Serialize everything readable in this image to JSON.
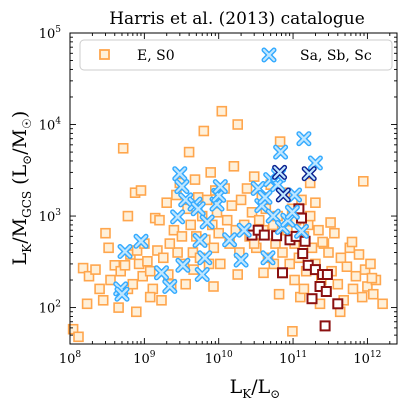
{
  "chart_data": {
    "type": "scatter",
    "title": "Harris et al. (2013) catalogue",
    "xlabel": "L",
    "xlabel_sub": "K",
    "xlabel_unit": "L",
    "xlabel_unit_symbol": "⊙",
    "ylabel": "L",
    "ylabel_sub_1": "K",
    "ylabel_sep": "/M",
    "ylabel_sub_2": "GCS",
    "ylabel_unit_open": " (L",
    "ylabel_unit_symbol": "⊙",
    "ylabel_unit_sep": "/M",
    "ylabel_unit_close": ")",
    "x_scale": "log",
    "y_scale": "log",
    "xlim": [
      100000000,
      2500000000000
    ],
    "ylim": [
      40,
      100000
    ],
    "x_ticks": [
      {
        "value": 100000000,
        "base": "10",
        "exp": "8"
      },
      {
        "value": 1000000000,
        "base": "10",
        "exp": "9"
      },
      {
        "value": 10000000000,
        "base": "10",
        "exp": "10"
      },
      {
        "value": 100000000000,
        "base": "10",
        "exp": "11"
      },
      {
        "value": 1000000000000,
        "base": "10",
        "exp": "12"
      }
    ],
    "y_ticks": [
      {
        "value": 100,
        "base": "10",
        "exp": "2"
      },
      {
        "value": 1000,
        "base": "10",
        "exp": "3"
      },
      {
        "value": 10000,
        "base": "10",
        "exp": "4"
      },
      {
        "value": 100000,
        "base": "10",
        "exp": "5"
      }
    ],
    "grid": false,
    "legend_position": "top",
    "colors": {
      "es0_edge": "#ffa64d",
      "es0_face": "#fff0d9",
      "spiral_edge": "#33aaff",
      "spiral_face": "#bfe6ff",
      "es0_dark_edge": "#8b1010",
      "spiral_dark_edge": "#0a1f8f"
    },
    "series": [
      {
        "name": "E, S0",
        "marker": "square",
        "points": [
          [
            110000000.0,
            58
          ],
          [
            130000000.0,
            48
          ],
          [
            150000000.0,
            270
          ],
          [
            180000000.0,
            220
          ],
          [
            220000000.0,
            260
          ],
          [
            170000000.0,
            110
          ],
          [
            250000000.0,
            160
          ],
          [
            280000000.0,
            120
          ],
          [
            330000000.0,
            450
          ],
          [
            350000000.0,
            200
          ],
          [
            400000000.0,
            290
          ],
          [
            450000000.0,
            100
          ],
          [
            480000000.0,
            250
          ],
          [
            520000000.0,
            5500
          ],
          [
            550000000.0,
            290
          ],
          [
            600000000.0,
            160
          ],
          [
            650000000.0,
            380
          ],
          [
            700000000.0,
            180
          ],
          [
            750000000.0,
            1800
          ],
          [
            780000000.0,
            90
          ],
          [
            800000000.0,
            420
          ],
          [
            850000000.0,
            300
          ],
          [
            900000000.0,
            1900
          ],
          [
            950000000.0,
            220
          ],
          [
            1000000000.0,
            500
          ],
          [
            1100000000.0,
            320
          ],
          [
            1200000000.0,
            250
          ],
          [
            1300000000.0,
            160
          ],
          [
            1400000000.0,
            950
          ],
          [
            1500000000.0,
            420
          ],
          [
            1600000000.0,
            900
          ],
          [
            1700000000.0,
            120
          ],
          [
            1800000000.0,
            350
          ],
          [
            2000000000.0,
            1400
          ],
          [
            2100000000.0,
            230
          ],
          [
            2300000000.0,
            180
          ],
          [
            2500000000.0,
            700
          ],
          [
            2700000000.0,
            1700
          ],
          [
            2800000000.0,
            400
          ],
          [
            3000000000.0,
            2300
          ],
          [
            3200000000.0,
            600
          ],
          [
            3400000000.0,
            300
          ],
          [
            3600000000.0,
            180
          ],
          [
            3800000000.0,
            1200
          ],
          [
            4000000000.0,
            5000
          ],
          [
            4200000000.0,
            800
          ],
          [
            4500000000.0,
            400
          ],
          [
            4800000000.0,
            2500
          ],
          [
            5000000000.0,
            600
          ],
          [
            5300000000.0,
            1600
          ],
          [
            5600000000.0,
            350
          ],
          [
            6000000000.0,
            1000
          ],
          [
            6300000000.0,
            8500
          ],
          [
            6600000000.0,
            550
          ],
          [
            7000000000.0,
            1500
          ],
          [
            7400000000.0,
            300
          ],
          [
            7800000000.0,
            3000
          ],
          [
            8200000000.0,
            800
          ],
          [
            8600000000.0,
            450
          ],
          [
            9000000000.0,
            1900
          ],
          [
            9500000000.0,
            1100
          ],
          [
            10000000000.0,
            650
          ],
          [
            10500000000.0,
            300
          ],
          [
            11000000000.0,
            14000
          ],
          [
            12000000000.0,
            2000
          ],
          [
            13000000000.0,
            900
          ],
          [
            14000000000.0,
            500
          ],
          [
            15000000000.0,
            1300
          ],
          [
            16000000000.0,
            3500
          ],
          [
            17000000000.0,
            700
          ],
          [
            18000000000.0,
            10000
          ],
          [
            19000000000.0,
            400
          ],
          [
            20000000000.0,
            1500
          ],
          [
            22000000000.0,
            800
          ],
          [
            24000000000.0,
            2000
          ],
          [
            26000000000.0,
            600
          ],
          [
            28000000000.0,
            1100
          ],
          [
            30000000000.0,
            2700
          ],
          [
            32000000000.0,
            450
          ],
          [
            35000000000.0,
            900
          ],
          [
            38000000000.0,
            1600
          ],
          [
            40000000000.0,
            700
          ],
          [
            43000000000.0,
            1200
          ],
          [
            46000000000.0,
            350
          ],
          [
            50000000000.0,
            2200
          ],
          [
            54000000000.0,
            800
          ],
          [
            58000000000.0,
            500
          ],
          [
            62000000000.0,
            1000
          ],
          [
            67000000000.0,
            6500
          ],
          [
            72000000000.0,
            400
          ],
          [
            78000000000.0,
            1800
          ],
          [
            84000000000.0,
            700
          ],
          [
            90000000000.0,
            300
          ],
          [
            97000000000.0,
            1200
          ],
          [
            105000000000.0,
            500
          ],
          [
            110000000000.0,
            900
          ],
          [
            120000000000.0,
            350
          ],
          [
            130000000000.0,
            1500
          ],
          [
            140000000000.0,
            600
          ],
          [
            150000000000.0,
            250
          ],
          [
            160000000000.0,
            800
          ],
          [
            170000000000.0,
            1000
          ],
          [
            180000000000.0,
            450
          ],
          [
            200000000000.0,
            300
          ],
          [
            220000000000.0,
            700
          ],
          [
            240000000000.0,
            200
          ],
          [
            260000000000.0,
            500
          ],
          [
            280000000000.0,
            150
          ],
          [
            300000000000.0,
            400
          ],
          [
            330000000000.0,
            250
          ],
          [
            360000000000.0,
            650
          ],
          [
            400000000000.0,
            180
          ],
          [
            440000000000.0,
            350
          ],
          [
            480000000000.0,
            120
          ],
          [
            530000000000.0,
            280
          ],
          [
            580000000000.0,
            450
          ],
          [
            640000000000.0,
            160
          ],
          [
            700000000000.0,
            220
          ],
          [
            770000000000.0,
            380
          ],
          [
            850000000000.0,
            130
          ],
          [
            930000000000.0,
            260
          ],
          [
            1000000000000.0,
            170
          ],
          [
            1100000000000.0,
            300
          ],
          [
            1200000000000.0,
            140
          ],
          [
            1300000000000.0,
            200
          ],
          [
            105000000000.0,
            200
          ],
          [
            98000000000.0,
            55
          ],
          [
            125000000000.0,
            130
          ],
          [
            140000000000.0,
            160
          ],
          [
            230000000000.0,
            110
          ],
          [
            200000000000.0,
            1400
          ],
          [
            250000000000.0,
            520
          ],
          [
            170000000000.0,
            2300
          ],
          [
            18000000000.0,
            230
          ],
          [
            8500000000.0,
            170
          ],
          [
            4600000000.0,
            260
          ],
          [
            2200000000.0,
            500
          ],
          [
            600000000.0,
            1000
          ],
          [
            300000000.0,
            650
          ],
          [
            1200000000.0,
            130
          ],
          [
            30000000000.0,
            500
          ],
          [
            40000000000.0,
            240
          ],
          [
            65000000000.0,
            140
          ],
          [
            55000000000.0,
            300
          ],
          [
            880000000000.0,
            2400
          ],
          [
            1150000000000.0,
            210
          ],
          [
            1600000000000.0,
            110
          ],
          [
            620000000000.0,
            520
          ],
          [
            320000000000.0,
            850
          ],
          [
            430000000000.0,
            90
          ]
        ]
      },
      {
        "name": "E, S0 (highlighted)",
        "marker": "square",
        "highlight": true,
        "points": [
          [
            28000000000.0,
            620
          ],
          [
            34000000000.0,
            700
          ],
          [
            41000000000.0,
            620
          ],
          [
            60000000000.0,
            610
          ],
          [
            72000000000.0,
            240
          ],
          [
            91000000000.0,
            550
          ],
          [
            110000000000.0,
            600
          ],
          [
            120000000000.0,
            1200
          ],
          [
            130000000000.0,
            950
          ],
          [
            135000000000.0,
            390
          ],
          [
            160000000000.0,
            290
          ],
          [
            180000000000.0,
            125
          ],
          [
            200000000000.0,
            260
          ],
          [
            230000000000.0,
            170
          ],
          [
            280000000000.0,
            150
          ],
          [
            250000000000.0,
            230
          ],
          [
            270000000000.0,
            63
          ],
          [
            290000000000.0,
            230
          ],
          [
            400000000000.0,
            110
          ],
          [
            145000000000.0,
            530
          ]
        ]
      },
      {
        "name": "Sa, Sb, Sc",
        "marker": "x",
        "points": [
          [
            480000000.0,
            160
          ],
          [
            500000000.0,
            140
          ],
          [
            550000000.0,
            410
          ],
          [
            900000000.0,
            530
          ],
          [
            1700000000.0,
            240
          ],
          [
            2200000000.0,
            170
          ],
          [
            2800000000.0,
            980
          ],
          [
            3000000000.0,
            2900
          ],
          [
            3200000000.0,
            2100
          ],
          [
            3300000000.0,
            290
          ],
          [
            3600000000.0,
            1500
          ],
          [
            4800000000.0,
            1350
          ],
          [
            5300000000.0,
            1200
          ],
          [
            5600000000.0,
            540
          ],
          [
            6000000000.0,
            230
          ],
          [
            6500000000.0,
            350
          ],
          [
            7000000000.0,
            860
          ],
          [
            9500000000.0,
            1350
          ],
          [
            10000000000.0,
            1680
          ],
          [
            10500000000.0,
            2100
          ],
          [
            14000000000.0,
            550
          ],
          [
            20000000000.0,
            330
          ],
          [
            22000000000.0,
            700
          ],
          [
            34000000000.0,
            2000
          ],
          [
            38000000000.0,
            1300
          ],
          [
            42000000000.0,
            1600
          ],
          [
            46000000000.0,
            350
          ],
          [
            50000000000.0,
            2500
          ],
          [
            54000000000.0,
            1000
          ],
          [
            62000000000.0,
            2200
          ],
          [
            64000000000.0,
            2800
          ],
          [
            68000000000.0,
            5000
          ],
          [
            72000000000.0,
            750
          ],
          [
            85000000000.0,
            900
          ],
          [
            98000000000.0,
            1100
          ],
          [
            105000000000.0,
            1700
          ],
          [
            130000000000.0,
            680
          ],
          [
            140000000000.0,
            7000
          ],
          [
            200000000000.0,
            3800
          ]
        ]
      },
      {
        "name": "Sa, Sb, Sc (highlighted)",
        "marker": "x",
        "highlight": true,
        "points": [
          [
            66000000000.0,
            3000
          ],
          [
            74000000000.0,
            1700
          ],
          [
            165000000000.0,
            2900
          ]
        ]
      }
    ],
    "legend": [
      {
        "label": "E, S0",
        "marker": "square"
      },
      {
        "label": "Sa, Sb, Sc",
        "marker": "x"
      }
    ]
  }
}
